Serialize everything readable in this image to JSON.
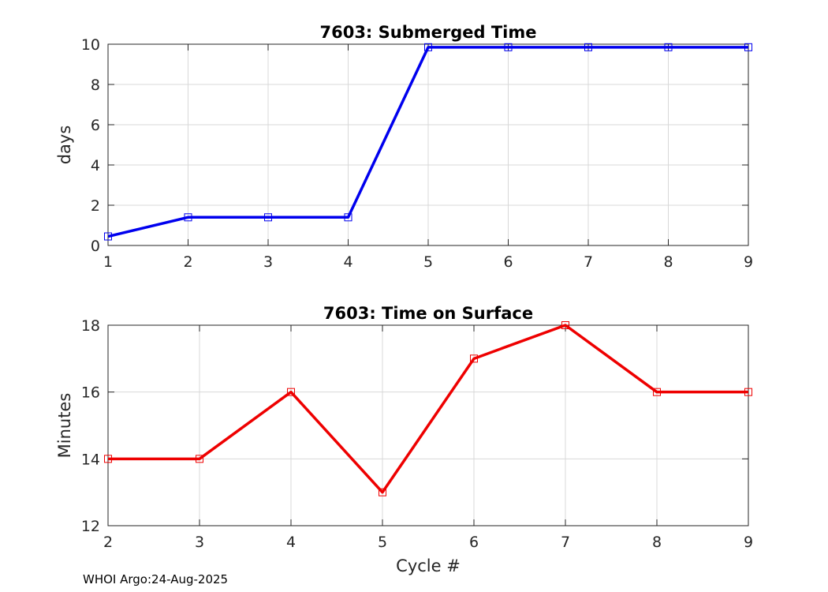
{
  "chart_data": [
    {
      "type": "line",
      "title": "7603: Submerged Time",
      "xlabel": "",
      "ylabel": "days",
      "xlim": [
        1,
        9
      ],
      "ylim": [
        0,
        10
      ],
      "xticks": [
        1,
        2,
        3,
        4,
        5,
        6,
        7,
        8,
        9
      ],
      "yticks": [
        0,
        2,
        4,
        6,
        8,
        10
      ],
      "grid": true,
      "color": "#0000ee",
      "marker": "square",
      "x": [
        1,
        2,
        3,
        4,
        5,
        6,
        7,
        8,
        9
      ],
      "values": [
        0.45,
        1.4,
        1.4,
        1.4,
        9.85,
        9.85,
        9.85,
        9.85,
        9.85
      ]
    },
    {
      "type": "line",
      "title": "7603: Time on Surface",
      "xlabel": "Cycle #",
      "ylabel": "Minutes",
      "xlim": [
        2,
        9
      ],
      "ylim": [
        12,
        18
      ],
      "xticks": [
        2,
        3,
        4,
        5,
        6,
        7,
        8,
        9
      ],
      "yticks": [
        12,
        14,
        16,
        18
      ],
      "grid": true,
      "color": "#ee0000",
      "marker": "square",
      "x": [
        2,
        3,
        4,
        5,
        6,
        7,
        8,
        9
      ],
      "values": [
        14,
        14,
        16,
        13,
        17,
        18,
        16,
        16
      ]
    }
  ],
  "footer": "WHOI Argo:24-Aug-2025"
}
